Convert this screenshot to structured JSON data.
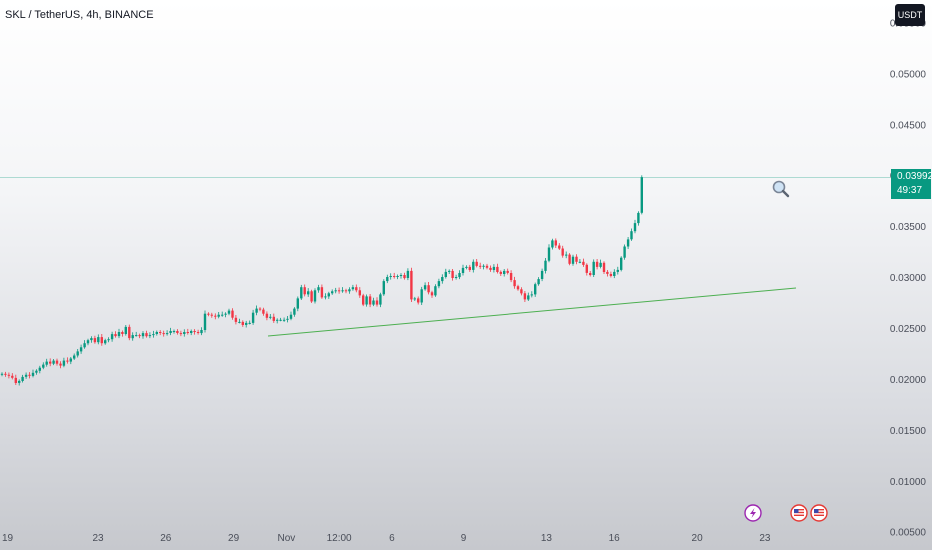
{
  "header": {
    "title": "SKL / TetherUS, 4h, BINANCE",
    "currency": "USDT"
  },
  "last_price": {
    "value": "0.03992",
    "countdown": "49:37",
    "color": "#089981"
  },
  "colors": {
    "up": "#089981",
    "down": "#f23645",
    "trendline": "#4caf50"
  },
  "icons": {
    "zoom": "magnifier-icon",
    "events": [
      "lightning-event-icon",
      "us-flag-icon",
      "us-flag-icon"
    ]
  },
  "chart_data": {
    "type": "candlestick",
    "y_axis": {
      "ticks": [
        "0.05500",
        "0.05000",
        "0.04500",
        "0.04000",
        "0.03500",
        "0.03000",
        "0.02500",
        "0.02000",
        "0.01500",
        "0.01000",
        "0.00500"
      ],
      "range": [
        0.0033,
        0.0573
      ]
    },
    "x_axis": {
      "ticks": [
        "19",
        "23",
        "26",
        "29",
        "Nov",
        "12:00",
        "6",
        "9",
        "13",
        "16",
        "20",
        "23"
      ],
      "range": [
        0,
        220
      ],
      "tick_x": [
        2,
        26,
        44,
        62,
        76,
        90,
        104,
        123,
        145,
        163,
        185,
        203
      ]
    },
    "close": [
      0.0206,
      0.0205,
      0.0204,
      0.0202,
      0.0197,
      0.0199,
      0.0203,
      0.0205,
      0.0204,
      0.0207,
      0.0209,
      0.0212,
      0.0215,
      0.0218,
      0.0216,
      0.0219,
      0.0216,
      0.0214,
      0.0219,
      0.0218,
      0.0221,
      0.0224,
      0.0228,
      0.0232,
      0.0236,
      0.0239,
      0.0241,
      0.0237,
      0.0242,
      0.0236,
      0.0239,
      0.024,
      0.0245,
      0.0243,
      0.0247,
      0.0245,
      0.0252,
      0.0241,
      0.0244,
      0.0244,
      0.0243,
      0.0246,
      0.0243,
      0.0244,
      0.0245,
      0.0247,
      0.0246,
      0.0245,
      0.0246,
      0.0248,
      0.0248,
      0.0246,
      0.0245,
      0.0247,
      0.0246,
      0.0248,
      0.0247,
      0.0246,
      0.0249,
      0.0265,
      0.0264,
      0.0263,
      0.0262,
      0.0264,
      0.0264,
      0.0265,
      0.0268,
      0.0261,
      0.0257,
      0.0257,
      0.0254,
      0.0256,
      0.0256,
      0.0266,
      0.027,
      0.0269,
      0.0265,
      0.0261,
      0.0262,
      0.0258,
      0.0259,
      0.0259,
      0.0259,
      0.026,
      0.0264,
      0.027,
      0.028,
      0.0291,
      0.0284,
      0.0287,
      0.0277,
      0.0288,
      0.0291,
      0.0281,
      0.0282,
      0.0285,
      0.0287,
      0.0288,
      0.0287,
      0.0288,
      0.0287,
      0.0289,
      0.0291,
      0.0288,
      0.0283,
      0.0274,
      0.0282,
      0.0274,
      0.0278,
      0.0274,
      0.0284,
      0.0297,
      0.0301,
      0.0302,
      0.0301,
      0.0302,
      0.0303,
      0.03,
      0.0307,
      0.0279,
      0.028,
      0.0276,
      0.0289,
      0.0293,
      0.0286,
      0.0283,
      0.0292,
      0.0297,
      0.0301,
      0.0306,
      0.0307,
      0.03,
      0.0301,
      0.0305,
      0.031,
      0.0311,
      0.0308,
      0.0316,
      0.0312,
      0.0311,
      0.0312,
      0.031,
      0.0308,
      0.0311,
      0.0306,
      0.0304,
      0.0307,
      0.0305,
      0.0298,
      0.0292,
      0.0289,
      0.0285,
      0.0279,
      0.0283,
      0.0284,
      0.0294,
      0.0299,
      0.0307,
      0.0317,
      0.033,
      0.0337,
      0.0332,
      0.0329,
      0.0322,
      0.0323,
      0.0314,
      0.0321,
      0.0316,
      0.0316,
      0.0313,
      0.0305,
      0.0303,
      0.0316,
      0.0311,
      0.0315,
      0.0306,
      0.0304,
      0.0302,
      0.0306,
      0.0308,
      0.032,
      0.0331,
      0.0338,
      0.0346,
      0.0354,
      0.0364,
      0.0399
    ]
  }
}
